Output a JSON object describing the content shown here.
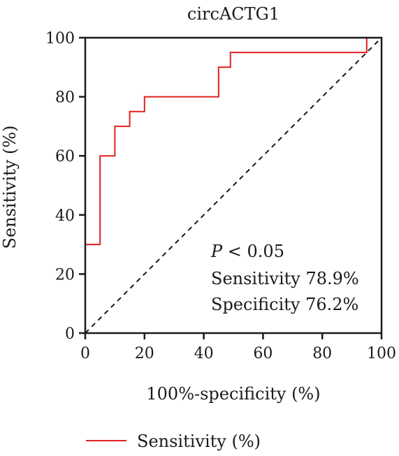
{
  "chart_data": {
    "type": "line",
    "title": "circACTG1",
    "xlabel": "100%-specificity (%)",
    "ylabel": "Sensitivity (%)",
    "xlim": [
      0,
      100
    ],
    "ylim": [
      0,
      100
    ],
    "x_ticks": [
      "0",
      "20",
      "40",
      "60",
      "80",
      "100"
    ],
    "y_ticks": [
      "0",
      "20",
      "40",
      "60",
      "80",
      "100"
    ],
    "grid": false,
    "legend_position": "bottom",
    "series": [
      {
        "name": "Sensitivity (%)",
        "color": "#e02020",
        "style": "step",
        "x": [
          0,
          0,
          5,
          5,
          10,
          10,
          15,
          15,
          20,
          20,
          45,
          45,
          49,
          49,
          95,
          95,
          100
        ],
        "y": [
          0,
          30,
          30,
          60,
          60,
          70,
          70,
          75,
          75,
          80,
          80,
          90,
          90,
          95,
          95,
          100,
          100
        ]
      }
    ],
    "reference_line": {
      "x": [
        0,
        100
      ],
      "y": [
        0,
        100
      ],
      "color": "#1a1a1a",
      "style": "dashed"
    },
    "annotations": {
      "p_prefix": "P",
      "p_suffix": " < 0.05",
      "sensitivity": "Sensitivity 78.9%",
      "specificity": "Specificity 76.2%"
    }
  }
}
